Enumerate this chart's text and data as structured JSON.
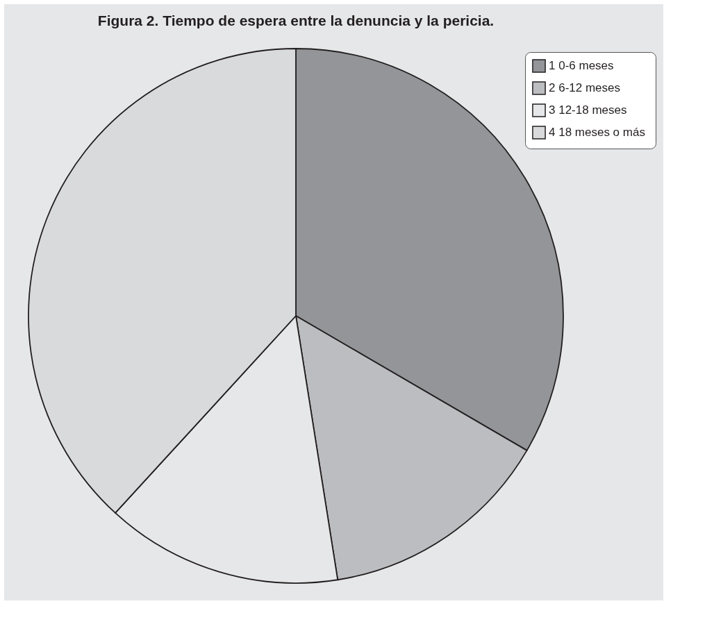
{
  "chart_data": {
    "type": "pie",
    "title": "Figura 2. Tiempo de espera entre la denuncia y la pericia.",
    "categories": [
      "1  0-6 meses",
      "2  6-12 meses",
      "3  12-18 meses",
      "4  18 meses o más"
    ],
    "values": [
      33.4,
      14.1,
      14.3,
      38.2
    ],
    "colors": [
      "#939598",
      "#bcbdc0",
      "#e6e7e8",
      "#d9dadc"
    ],
    "legend": "top right"
  }
}
